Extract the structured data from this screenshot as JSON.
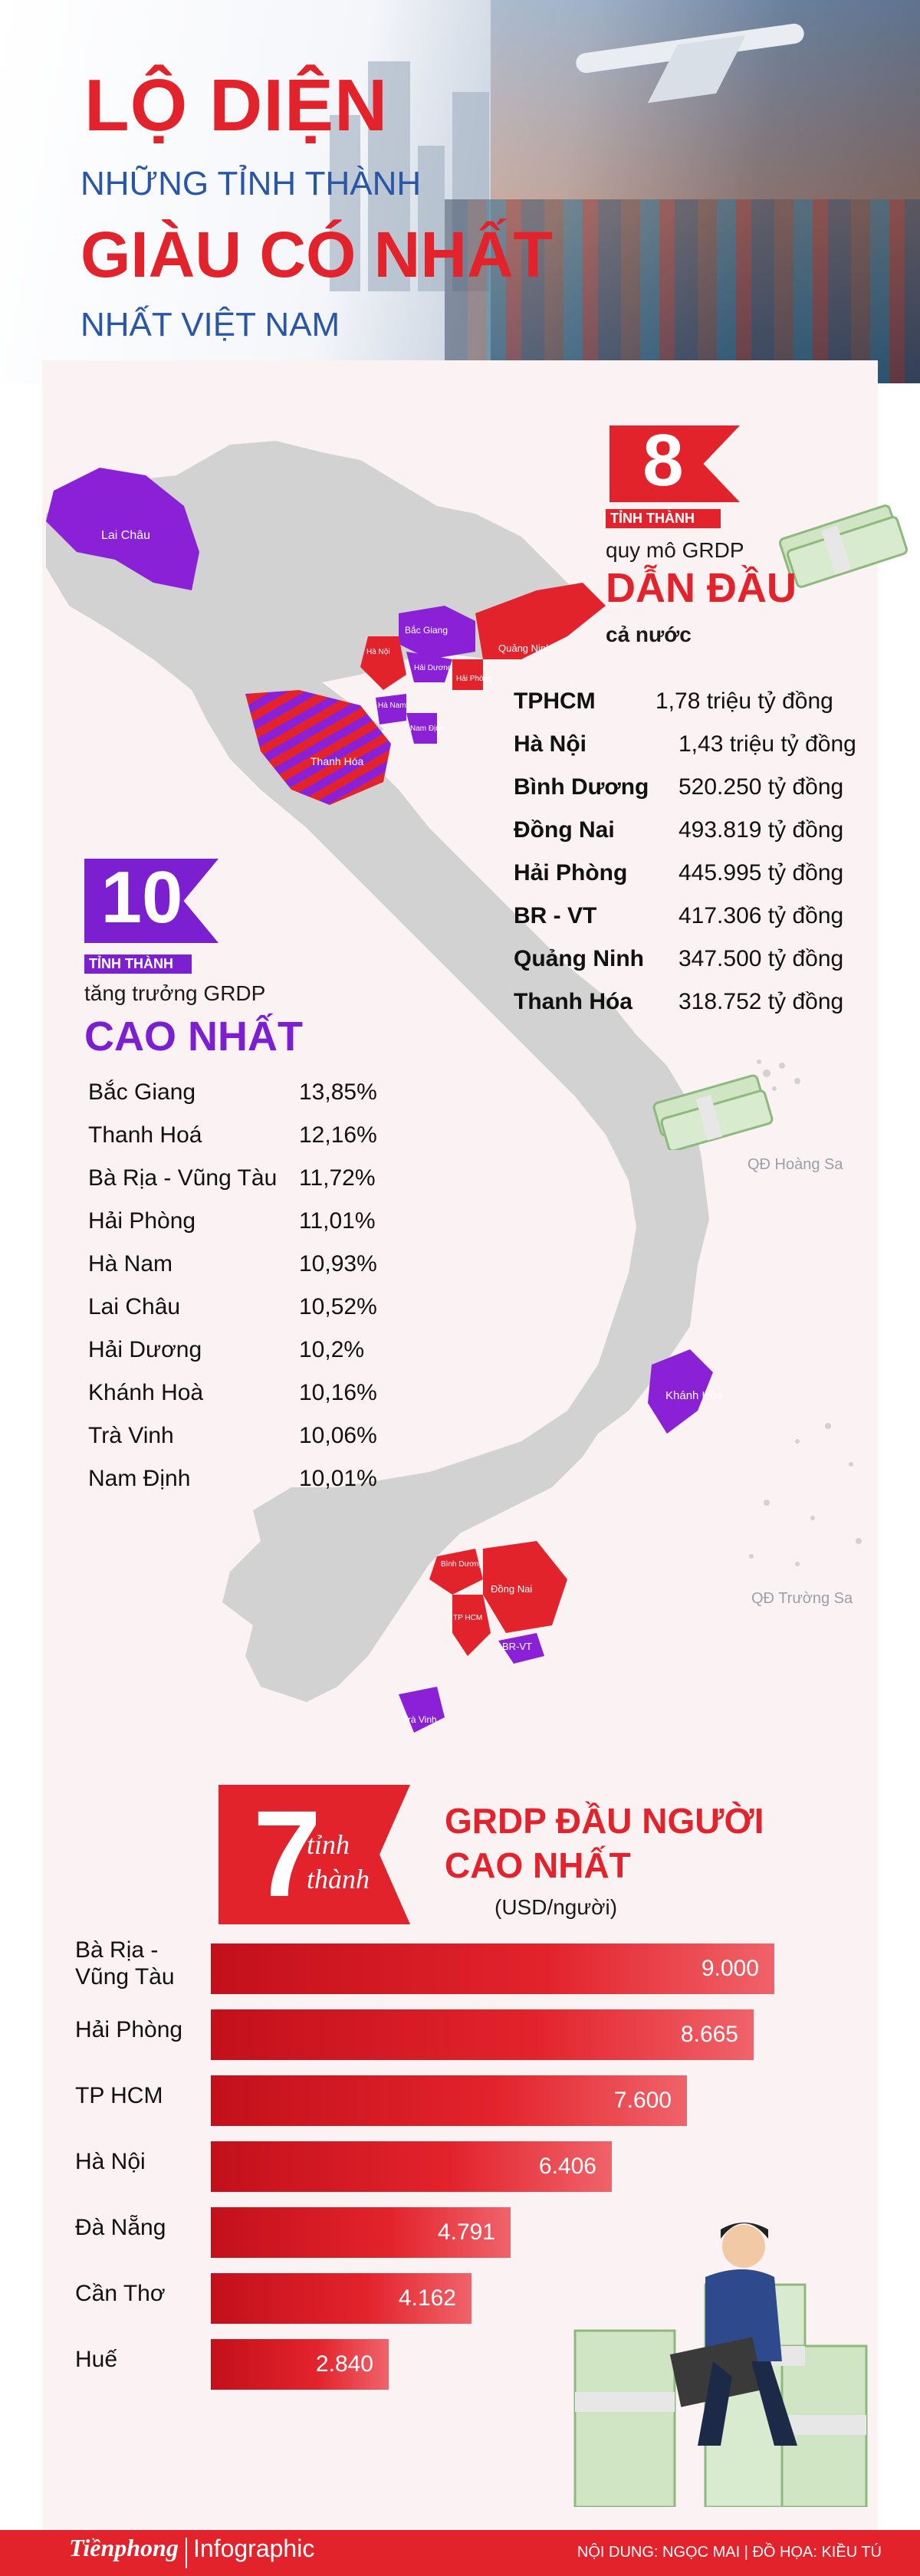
{
  "header": {
    "title_line1": "LỘ DIỆN",
    "title_line2": "NHỮNG TỈNH THÀNH",
    "title_line3": "GIÀU CÓ NHẤT",
    "title_line4": "NHẤT VIỆT NAM"
  },
  "map": {
    "labels": {
      "lai_chau": "Lai Châu",
      "bac_giang": "Bắc Giang",
      "quang_ninh": "Quảng Ninh",
      "ha_noi": "Hà Nội",
      "hai_duong": "Hải Dương",
      "hai_phong": "Hải Phòng",
      "ha_nam": "Hà Nam",
      "nam_dinh": "Nam Định",
      "thanh_hoa": "Thanh Hóa",
      "khanh_hoa": "Khánh Hòa",
      "binh_duong": "Bình Dương",
      "dong_nai": "Đồng Nai",
      "tphcm": "TP HCM",
      "br_vt": "BR-VT",
      "tra_vinh": "Trà Vinh"
    },
    "hoang_sa": "QĐ Hoàng Sa",
    "truong_sa": "QĐ Trường Sa",
    "colors": {
      "land": "#d2d2d2",
      "red": "#e3232c",
      "purple": "#8a21d6",
      "stripe": "#e3232c"
    }
  },
  "block8": {
    "number": "8",
    "unit": "TỈNH THÀNH",
    "line1": "quy mô GRDP",
    "line2": "DẪN ĐẦU",
    "line3": "cả nước",
    "rows": [
      {
        "name": "TPHCM",
        "value": "1,78 triệu tỷ đồng"
      },
      {
        "name": "Hà Nội",
        "value": "1,43 triệu tỷ đồng"
      },
      {
        "name": "Bình Dương",
        "value": "520.250 tỷ đồng"
      },
      {
        "name": "Đồng Nai",
        "value": "493.819 tỷ đồng"
      },
      {
        "name": "Hải Phòng",
        "value": "445.995 tỷ đồng"
      },
      {
        "name": "BR - VT",
        "value": "417.306 tỷ đồng"
      },
      {
        "name": "Quảng Ninh",
        "value": "347.500 tỷ đồng"
      },
      {
        "name": "Thanh Hóa",
        "value": "318.752 tỷ đồng"
      }
    ]
  },
  "block10": {
    "number": "10",
    "unit": "TỈNH THÀNH",
    "line1": "tăng trưởng GRDP",
    "line2": "CAO NHẤT",
    "rows": [
      {
        "name": "Bắc Giang",
        "value": "13,85%"
      },
      {
        "name": "Thanh Hoá",
        "value": "12,16%"
      },
      {
        "name": "Bà Rịa - Vũng Tàu",
        "value": "11,72%"
      },
      {
        "name": "Hải Phòng",
        "value": "11,01%"
      },
      {
        "name": "Hà Nam",
        "value": "10,93%"
      },
      {
        "name": "Lai Châu",
        "value": "10,52%"
      },
      {
        "name": "Hải Dương",
        "value": "10,2%"
      },
      {
        "name": "Khánh Hoà",
        "value": "10,16%"
      },
      {
        "name": "Trà Vinh",
        "value": "10,06%"
      },
      {
        "name": "Nam Định",
        "value": "10,01%"
      }
    ]
  },
  "block7": {
    "number": "7",
    "unit_line1": "tỉnh",
    "unit_line2": "thành",
    "line1": "GRDP ĐẦU NGƯỜI",
    "line2": "CAO NHẤT",
    "unit": "(USD/người)"
  },
  "chart_data": {
    "type": "bar",
    "orientation": "horizontal",
    "categories": [
      "Bà Rịa - Vũng Tàu",
      "Hải Phòng",
      "TP HCM",
      "Hà Nội",
      "Đà Nẵng",
      "Cần Thơ",
      "Huế"
    ],
    "category_labels": [
      "Bà Rịa -\nVũng Tàu",
      "Hải Phòng",
      "TP HCM",
      "Hà Nội",
      "Đà Nẵng",
      "Cần Thơ",
      "Huế"
    ],
    "values": [
      9000,
      8665,
      7600,
      6406,
      4791,
      4162,
      2840
    ],
    "value_labels": [
      "9.000",
      "8.665",
      "7.600",
      "6.406",
      "4.791",
      "4.162",
      "2.840"
    ],
    "title": "GRDP ĐẦU NGƯỜI CAO NHẤT",
    "ylabel": "(USD/người)",
    "xlim": [
      0,
      9000
    ],
    "grid": false,
    "bar_color": "#e3232c"
  },
  "footer": {
    "brand": "Tiềnphong",
    "brand2": "Infographic",
    "credits": "NỘI DUNG: NGỌC MAI | ĐỒ HỌA: KIỀU TÚ"
  }
}
